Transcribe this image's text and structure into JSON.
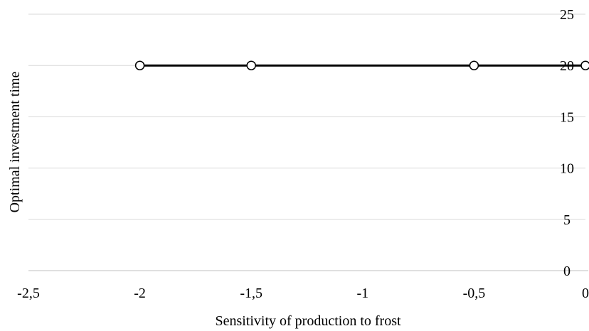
{
  "chart_data": {
    "type": "line",
    "title": "",
    "xlabel": "Sensitivity of production to frost",
    "ylabel": "Optimal investment time",
    "xlim": [
      -2.5,
      0
    ],
    "ylim": [
      0,
      25
    ],
    "x_ticks": [
      {
        "value": -2.5,
        "label": "-2,5"
      },
      {
        "value": -2,
        "label": "-2"
      },
      {
        "value": -1.5,
        "label": "-1,5"
      },
      {
        "value": -1,
        "label": "-1"
      },
      {
        "value": -0.5,
        "label": "-0,5"
      },
      {
        "value": 0,
        "label": "0"
      }
    ],
    "y_ticks": [
      {
        "value": 0,
        "label": "0"
      },
      {
        "value": 5,
        "label": "5"
      },
      {
        "value": 10,
        "label": "10"
      },
      {
        "value": 15,
        "label": "15"
      },
      {
        "value": 20,
        "label": "20"
      },
      {
        "value": 25,
        "label": "25"
      }
    ],
    "y_axis_side": "right",
    "grid": "horizontal",
    "legend": "none",
    "series": [
      {
        "points": [
          {
            "x": -2,
            "y": 20
          },
          {
            "x": -1.5,
            "y": 20
          },
          {
            "x": -0.5,
            "y": 20
          },
          {
            "x": 0,
            "y": 20
          }
        ],
        "line_color": "#000000",
        "marker": "open-circle"
      }
    ],
    "colors": {
      "grid": "#d9d9d9",
      "axis": "#bfbfbf",
      "line": "#000000",
      "marker_fill": "#ffffff"
    }
  }
}
